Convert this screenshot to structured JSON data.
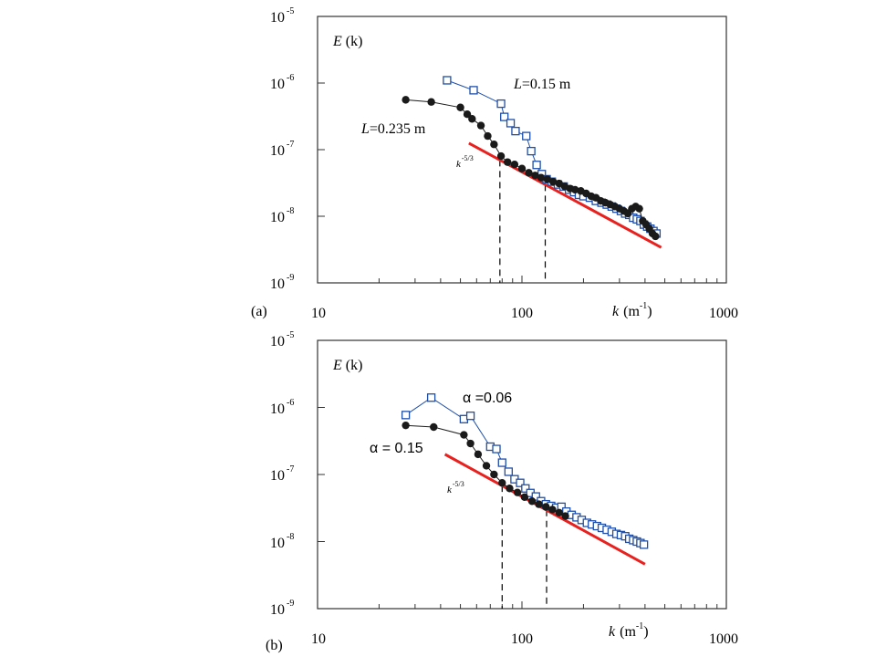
{
  "panels": [
    {
      "panel_label": "(a)",
      "y_title": "E",
      "y_title_suffix": "(k)",
      "x_title": "k",
      "x_title_unit": "(m",
      "x_title_exp": "-1",
      "x_title_close": ")",
      "x_tick_labels": [
        "10",
        "100",
        "1000"
      ],
      "y_tick_labels": [
        {
          "base": "10",
          "exp": "-9"
        },
        {
          "base": "10",
          "exp": "-8"
        },
        {
          "base": "10",
          "exp": "-7"
        },
        {
          "base": "10",
          "exp": "-6"
        },
        {
          "base": "10",
          "exp": "-5"
        }
      ],
      "slope_label": {
        "base": "k",
        "exp": "-5/3"
      },
      "annotations": [
        {
          "italic": "L",
          "text": "=0.15 m"
        },
        {
          "italic": "L",
          "text": "=0.235 m"
        }
      ]
    },
    {
      "panel_label": "(b)",
      "y_title": "E",
      "y_title_suffix": "(k)",
      "x_title": "k",
      "x_title_unit": "(m",
      "x_title_exp": "-1",
      "x_title_close": ")",
      "x_tick_labels": [
        "10",
        "100",
        "1000"
      ],
      "y_tick_labels": [
        {
          "base": "10",
          "exp": "-9"
        },
        {
          "base": "10",
          "exp": "-8"
        },
        {
          "base": "10",
          "exp": "-7"
        },
        {
          "base": "10",
          "exp": "-6"
        },
        {
          "base": "10",
          "exp": "-5"
        }
      ],
      "slope_label": {
        "base": "k",
        "exp": "-5/3"
      },
      "annotations": [
        {
          "italic": "",
          "text": "α =0.06"
        },
        {
          "italic": "",
          "text": "α = 0.15"
        }
      ]
    }
  ],
  "colors": {
    "open_square_series": "#1f4fa8",
    "filled_circle_series": "#1a1a1a",
    "fit_line": "#e8201e",
    "axis": "#333333"
  },
  "chart_data": [
    {
      "type": "scatter",
      "panel": "(a)",
      "xscale": "log",
      "yscale": "log",
      "xlim": [
        10,
        1000
      ],
      "ylim": [
        1e-09,
        1e-05
      ],
      "xlabel": "k (m-1)",
      "ylabel": "E (k)",
      "series": [
        {
          "marker": "open-square",
          "connected": true,
          "x": [
            43,
            58,
            79,
            82,
            88,
            93,
            105,
            111,
            118,
            125,
            132,
            140,
            150,
            160,
            170,
            180,
            190,
            200,
            215,
            230,
            245,
            260,
            275,
            290,
            305,
            320,
            335,
            350,
            365,
            380,
            395,
            410,
            425,
            440,
            455
          ],
          "y": [
            1.1e-06,
            7.8e-07,
            4.9e-07,
            3.1e-07,
            2.5e-07,
            1.9e-07,
            1.6e-07,
            9.5e-08,
            5.9e-08,
            4.3e-08,
            3.6e-08,
            3.3e-08,
            3e-08,
            2.8e-08,
            2.5e-08,
            2.3e-08,
            2.1e-08,
            2e-08,
            1.9e-08,
            1.7e-08,
            1.6e-08,
            1.5e-08,
            1.4e-08,
            1.3e-08,
            1.2e-08,
            1.1e-08,
            1.05e-08,
            9.5e-09,
            9e-09,
            8.5e-09,
            7.5e-09,
            7e-09,
            6.5e-09,
            6e-09,
            5.5e-09
          ]
        },
        {
          "marker": "filled-circle",
          "connected": true,
          "x": [
            27,
            36,
            50,
            54,
            57,
            63,
            68,
            73,
            79,
            85,
            92,
            100,
            108,
            116,
            124,
            133,
            142,
            152,
            162,
            172,
            182,
            194,
            206,
            218,
            230,
            243,
            256,
            270,
            285,
            300,
            315,
            330,
            345,
            360,
            375,
            390,
            405,
            420,
            435,
            450
          ],
          "y": [
            5.6e-07,
            5.2e-07,
            4.3e-07,
            3.4e-07,
            2.9e-07,
            2.3e-07,
            1.6e-07,
            1.2e-07,
            8e-08,
            6.5e-08,
            6e-08,
            5.2e-08,
            4.5e-08,
            4.1e-08,
            3.8e-08,
            3.6e-08,
            3.3e-08,
            3.1e-08,
            2.8e-08,
            2.6e-08,
            2.5e-08,
            2.4e-08,
            2.2e-08,
            2e-08,
            1.9e-08,
            1.7e-08,
            1.6e-08,
            1.5e-08,
            1.4e-08,
            1.3e-08,
            1.2e-08,
            1.1e-08,
            1.3e-08,
            1.4e-08,
            1.3e-08,
            8.5e-09,
            7.5e-09,
            6.5e-09,
            5.5e-09,
            5e-09
          ]
        }
      ],
      "reference_line": {
        "slope_exponent": "-5/3",
        "x": [
          55,
          480
        ],
        "y": [
          1.25e-07,
          3.4e-09
        ]
      },
      "vertical_markers_x": [
        78,
        130
      ]
    },
    {
      "type": "scatter",
      "panel": "(b)",
      "xscale": "log",
      "yscale": "log",
      "xlim": [
        10,
        1000
      ],
      "ylim": [
        1e-09,
        1e-05
      ],
      "xlabel": "k (m-1)",
      "ylabel": "E (k)",
      "series": [
        {
          "marker": "open-square",
          "connected": true,
          "x": [
            27,
            36,
            52,
            56,
            70,
            75,
            80,
            86,
            92,
            98,
            104,
            110,
            117,
            124,
            131,
            139,
            147,
            156,
            165,
            175,
            185,
            196,
            208,
            220,
            233,
            246,
            260,
            275,
            290,
            305,
            320,
            335,
            350,
            365,
            380,
            395
          ],
          "y": [
            7.7e-07,
            1.4e-06,
            6.7e-07,
            7.5e-07,
            2.6e-07,
            2.4e-07,
            1.5e-07,
            1.1e-07,
            8.5e-08,
            7.5e-08,
            6.2e-08,
            5.3e-08,
            4.7e-08,
            4e-08,
            3.6e-08,
            3.4e-08,
            3.2e-08,
            3.3e-08,
            2.8e-08,
            2.5e-08,
            2.3e-08,
            2.1e-08,
            1.9e-08,
            1.8e-08,
            1.7e-08,
            1.6e-08,
            1.5e-08,
            1.4e-08,
            1.3e-08,
            1.25e-08,
            1.2e-08,
            1.1e-08,
            1.05e-08,
            1e-08,
            9.5e-09,
            9e-09
          ]
        },
        {
          "marker": "filled-circle",
          "connected": true,
          "x": [
            27,
            37,
            52,
            56,
            61,
            67,
            73,
            80,
            87,
            95,
            103,
            112,
            121,
            131,
            141,
            152,
            163
          ],
          "y": [
            5.4e-07,
            5.1e-07,
            3.9e-07,
            2.9e-07,
            2e-07,
            1.35e-07,
            1e-07,
            7.5e-08,
            6.2e-08,
            5.4e-08,
            4.6e-08,
            4e-08,
            3.6e-08,
            3.3e-08,
            3e-08,
            2.7e-08,
            2.4e-08
          ]
        }
      ],
      "reference_line": {
        "slope_exponent": "-5/3",
        "x": [
          42,
          400
        ],
        "y": [
          2e-07,
          4.6e-09
        ]
      },
      "vertical_markers_x": [
        80,
        132
      ]
    }
  ]
}
